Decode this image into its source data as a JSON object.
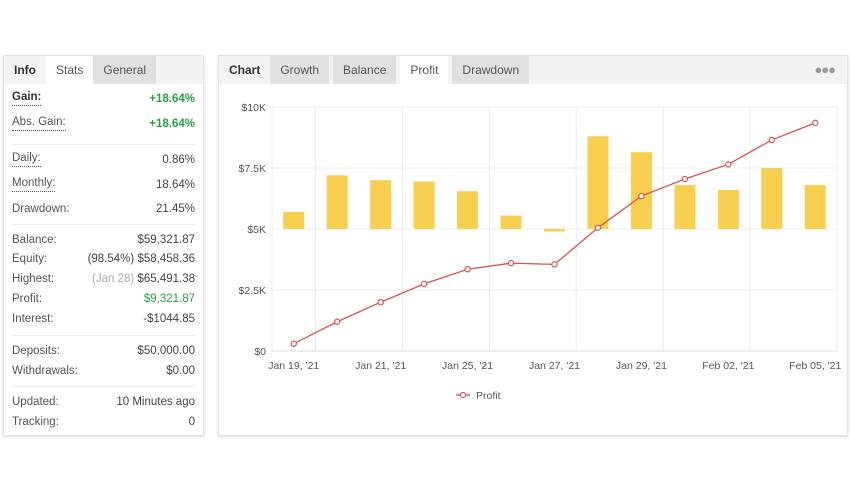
{
  "info_panel": {
    "tabs": [
      {
        "label": "Info"
      },
      {
        "label": "Stats"
      },
      {
        "label": "General"
      }
    ],
    "active_tab": "Stats",
    "rows": {
      "gain": {
        "label": "Gain:",
        "value": "+18.64%"
      },
      "abs_gain": {
        "label": "Abs. Gain:",
        "value": "+18.64%"
      },
      "daily": {
        "label": "Daily:",
        "value": "0.86%"
      },
      "monthly": {
        "label": "Monthly:",
        "value": "18.64%"
      },
      "drawdown": {
        "label": "Drawdown:",
        "value": "21.45%"
      },
      "balance": {
        "label": "Balance:",
        "value": "$59,321.87"
      },
      "equity": {
        "label": "Equity:",
        "note": "(98.54%)",
        "value": "$58,458.36"
      },
      "highest": {
        "label": "Highest:",
        "note": "(Jan 28)",
        "value": "$65,491.38"
      },
      "profit": {
        "label": "Profit:",
        "value": "$9,321.87"
      },
      "interest": {
        "label": "Interest:",
        "value": "-$1044.85"
      },
      "deposits": {
        "label": "Deposits:",
        "value": "$50,000.00"
      },
      "withdrawals": {
        "label": "Withdrawals:",
        "value": "$0.00"
      },
      "updated": {
        "label": "Updated:",
        "value": "10 Minutes ago"
      },
      "tracking": {
        "label": "Tracking:",
        "value": "0"
      }
    }
  },
  "chart_panel": {
    "tabs": [
      {
        "label": "Chart"
      },
      {
        "label": "Growth"
      },
      {
        "label": "Balance"
      },
      {
        "label": "Profit"
      },
      {
        "label": "Drawdown"
      }
    ],
    "active_tab": "Profit",
    "more_icon": "ellipsis-icon"
  },
  "colors": {
    "bar": "#f9cf4f",
    "line": "#d9534f",
    "positive": "#27a243"
  },
  "chart_data": {
    "type": "bar+line",
    "ylim": [
      0,
      10000
    ],
    "y_ticks": [
      "$0",
      "$2.5K",
      "$5K",
      "$7.5K",
      "$10K"
    ],
    "y_tick_values": [
      0,
      2500,
      5000,
      7500,
      10000
    ],
    "x_tick_labels": [
      "Jan 19, '21",
      "Jan 21, '21",
      "Jan 25, '21",
      "Jan 27, '21",
      "Jan 29, '21",
      "Feb 02, '21",
      "Feb 05, '21"
    ],
    "bar_baseline": 5000,
    "bars": [
      5700,
      7200,
      7000,
      6950,
      6550,
      5550,
      4900,
      8800,
      8150,
      6800,
      6600,
      7500,
      6800
    ],
    "series": [
      {
        "name": "Profit",
        "values": [
          300,
          1200,
          2000,
          2750,
          3350,
          3600,
          3550,
          5050,
          6350,
          7050,
          7650,
          8650,
          9350
        ]
      }
    ],
    "legend": "bottom",
    "grid": true
  }
}
